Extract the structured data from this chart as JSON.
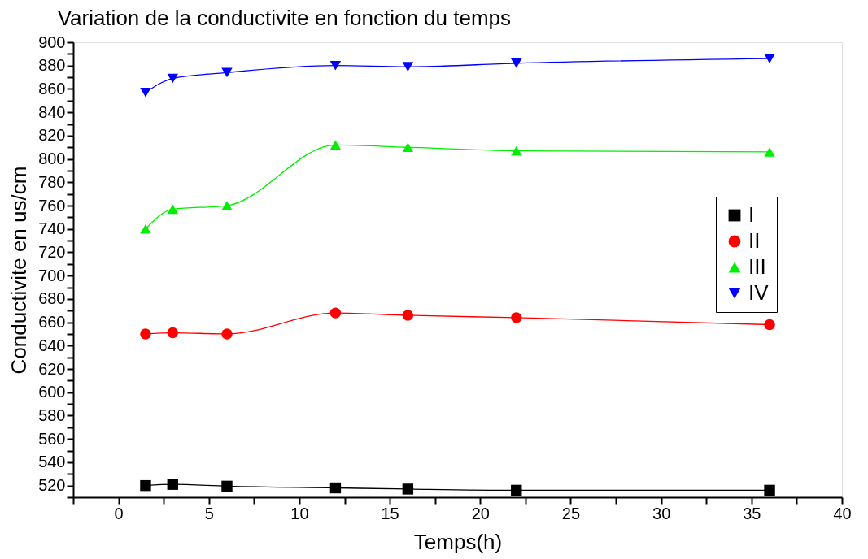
{
  "chart_data": {
    "type": "line",
    "title": "Variation de la conductivite en fonction du temps",
    "xlabel": "Temps(h)",
    "ylabel": "Conductivite en us/cm",
    "x": [
      1.5,
      3,
      6,
      12,
      16,
      22,
      36
    ],
    "series": [
      {
        "name": "I",
        "color": "#000000",
        "marker": "square",
        "values": [
          520,
          521,
          519.5,
          518,
          517,
          516,
          516
        ]
      },
      {
        "name": "II",
        "color": "#ff0000",
        "marker": "circle",
        "values": [
          650,
          651,
          650,
          668,
          666,
          664,
          658
        ]
      },
      {
        "name": "III",
        "color": "#00ee00",
        "marker": "triangle",
        "values": [
          740,
          757,
          760,
          812,
          810,
          807,
          806
        ]
      },
      {
        "name": "IV",
        "color": "#0000ff",
        "marker": "triangle-down",
        "values": [
          857,
          869,
          874,
          880,
          879,
          882,
          886
        ]
      }
    ],
    "xlim": [
      -2.5,
      40
    ],
    "xticks": [
      {
        "value": -2.5,
        "label": null
      },
      0,
      {
        "value": 2.5,
        "label": null
      },
      5,
      {
        "value": 7.5,
        "label": null
      },
      10,
      {
        "value": 12.5,
        "label": null
      },
      15,
      {
        "value": 17.5,
        "label": null
      },
      20,
      {
        "value": 22.5,
        "label": null
      },
      25,
      {
        "value": 27.5,
        "label": null
      },
      30,
      {
        "value": 32.5,
        "label": null
      },
      35,
      {
        "value": 37.5,
        "label": null
      },
      40
    ],
    "ylim": [
      510,
      900
    ],
    "yticks": [
      {
        "value": 510,
        "label": null
      },
      520,
      {
        "value": 530,
        "label": null
      },
      540,
      {
        "value": 550,
        "label": null
      },
      560,
      {
        "value": 570,
        "label": null
      },
      580,
      {
        "value": 590,
        "label": null
      },
      600,
      {
        "value": 610,
        "label": null
      },
      620,
      {
        "value": 630,
        "label": null
      },
      640,
      {
        "value": 650,
        "label": null
      },
      660,
      {
        "value": 670,
        "label": null
      },
      680,
      {
        "value": 690,
        "label": null
      },
      700,
      {
        "value": 710,
        "label": null
      },
      720,
      {
        "value": 730,
        "label": null
      },
      740,
      {
        "value": 750,
        "label": null
      },
      760,
      {
        "value": 770,
        "label": null
      },
      780,
      {
        "value": 790,
        "label": null
      },
      800,
      {
        "value": 810,
        "label": null
      },
      820,
      {
        "value": 830,
        "label": null
      },
      840,
      {
        "value": 850,
        "label": null
      },
      860,
      {
        "value": 870,
        "label": null
      },
      880,
      {
        "value": 890,
        "label": null
      },
      900
    ],
    "grid": false,
    "legend": "right",
    "line_style": "solid"
  }
}
